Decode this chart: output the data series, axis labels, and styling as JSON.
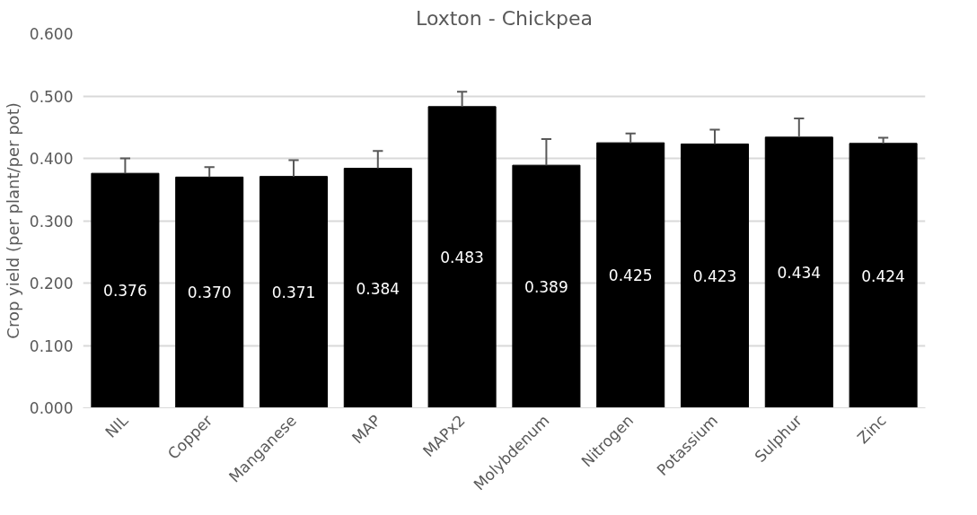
{
  "chart_data": {
    "type": "bar",
    "title": "Loxton - Chickpea",
    "ylabel": "Crop yield (per plant/per pot)",
    "categories": [
      "NIL",
      "Copper",
      "Manganese",
      "MAP",
      "MAPx2",
      "Molybdenum",
      "Nitrogen",
      "Potassium",
      "Sulphur",
      "Zinc"
    ],
    "values": [
      0.376,
      0.37,
      0.371,
      0.384,
      0.483,
      0.389,
      0.425,
      0.423,
      0.434,
      0.424
    ],
    "value_labels": [
      "0.376",
      "0.370",
      "0.371",
      "0.384",
      "0.483",
      "0.389",
      "0.425",
      "0.423",
      "0.434",
      "0.424"
    ],
    "errors": [
      [
        0.376,
        0.4
      ],
      [
        0.37,
        0.386
      ],
      [
        0.371,
        0.397
      ],
      [
        0.384,
        0.412
      ],
      [
        0.483,
        0.507
      ],
      [
        0.389,
        0.431
      ],
      [
        0.425,
        0.44
      ],
      [
        0.423,
        0.446
      ],
      [
        0.434,
        0.464
      ],
      [
        0.424,
        0.433
      ]
    ],
    "color": "#000000",
    "ylim": [
      0,
      0.6
    ],
    "yticks": [
      {
        "value": 0,
        "label": "0.000"
      },
      {
        "value": 0.1,
        "label": "0.100"
      },
      {
        "value": 0.2,
        "label": "0.200"
      },
      {
        "value": 0.3,
        "label": "0.300"
      },
      {
        "value": 0.4,
        "label": "0.400"
      },
      {
        "value": 0.5,
        "label": "0.500"
      },
      {
        "value": 0.6,
        "label": "0.600"
      }
    ],
    "grid": "y"
  }
}
